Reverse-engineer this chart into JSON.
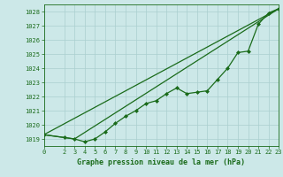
{
  "title": "Graphe pression niveau de la mer (hPa)",
  "bg_color": "#cce8e8",
  "grid_color": "#aacfcf",
  "line_color": "#1a6b1a",
  "marker_color": "#1a6b1a",
  "xlim": [
    0,
    23
  ],
  "ylim": [
    1018.5,
    1028.5
  ],
  "xticks": [
    0,
    2,
    3,
    4,
    5,
    6,
    7,
    8,
    9,
    10,
    11,
    12,
    13,
    14,
    15,
    16,
    17,
    18,
    19,
    20,
    21,
    22,
    23
  ],
  "yticks": [
    1019,
    1020,
    1021,
    1022,
    1023,
    1024,
    1025,
    1026,
    1027,
    1028
  ],
  "series1_x": [
    0,
    2,
    3,
    4,
    5,
    6,
    7,
    8,
    9,
    10,
    11,
    12,
    13,
    14,
    15,
    16,
    17,
    18,
    19,
    20,
    21,
    22,
    23
  ],
  "series1_y": [
    1019.3,
    1019.1,
    1019.0,
    1018.8,
    1019.0,
    1019.5,
    1020.1,
    1020.6,
    1021.0,
    1021.5,
    1021.7,
    1022.2,
    1022.6,
    1022.2,
    1022.3,
    1022.4,
    1023.2,
    1024.0,
    1025.1,
    1025.2,
    1027.1,
    1027.9,
    1028.2
  ],
  "series2_x": [
    0,
    3,
    23
  ],
  "series2_y": [
    1019.3,
    1019.0,
    1028.2
  ],
  "series3_x": [
    0,
    23
  ],
  "series3_y": [
    1019.3,
    1028.2
  ]
}
